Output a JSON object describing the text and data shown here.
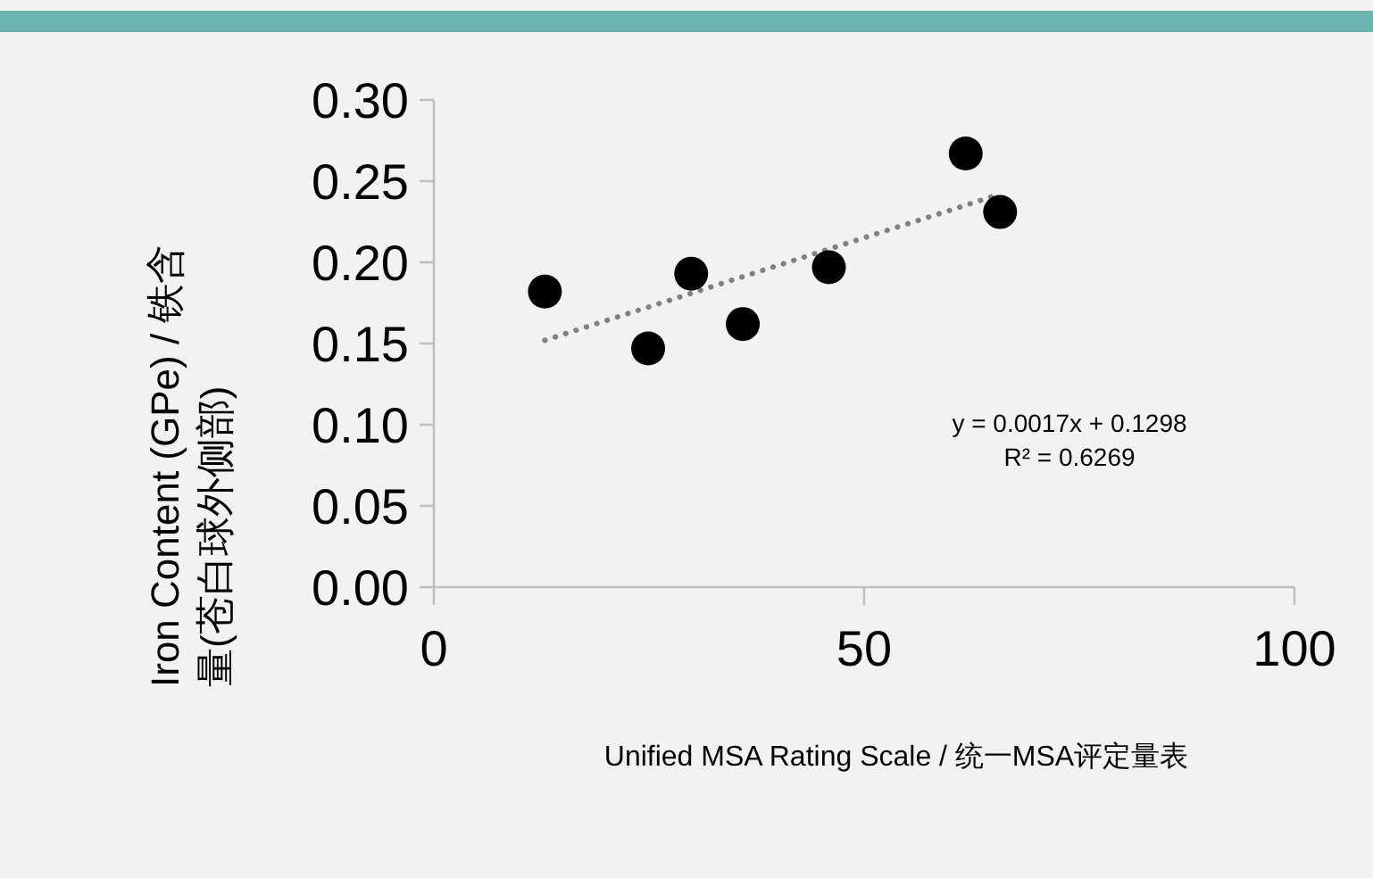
{
  "chart_data": {
    "type": "scatter",
    "xlabel": "Unified MSA Rating Scale / 统一MSA评定量表",
    "ylabel": "Iron Content (GPe) / 铁含量(苍白球外侧部)",
    "xlim": [
      0,
      100
    ],
    "xticks": [
      0,
      50,
      100
    ],
    "ylim": [
      0,
      0.3
    ],
    "yticks": [
      {
        "value": 0,
        "label": "0.00"
      },
      {
        "value": 0.05,
        "label": "0.05"
      },
      {
        "value": 0.1,
        "label": "0.10"
      },
      {
        "value": 0.15,
        "label": "0.15"
      },
      {
        "value": 0.2,
        "label": "0.20"
      },
      {
        "value": 0.25,
        "label": "0.25"
      },
      {
        "value": 0.3,
        "label": "0.30"
      }
    ],
    "grid": false,
    "series": [
      {
        "color": "#000000",
        "marker": "circle",
        "x": [
          12.9,
          24.9,
          29.9,
          35.9,
          45.9,
          61.8,
          65.8
        ],
        "values": [
          0.182,
          0.147,
          0.193,
          0.162,
          0.197,
          0.267,
          0.231
        ]
      },
      {
        "type": "line",
        "color": "#808080",
        "line_style": "dotted",
        "x": [
          12.9,
          65.8
        ],
        "values": [
          0.152,
          0.242
        ]
      }
    ],
    "annotations": [
      "y = 0.0017x + 0.1298",
      "R² = 0.6269"
    ]
  }
}
